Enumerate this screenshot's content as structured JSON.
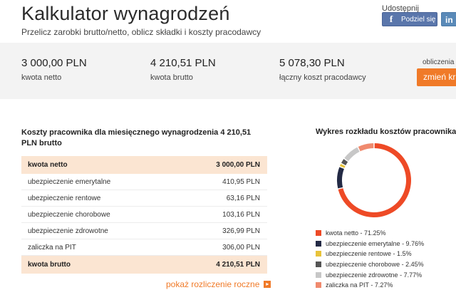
{
  "header": {
    "title": "Kalkulator wynagrodzeń",
    "subtitle": "Przelicz zarobki brutto/netto, oblicz składki i koszty pracodawcy"
  },
  "share": {
    "label": "Udostępnij",
    "facebook_label": "Podziel się",
    "facebook_icon": "f",
    "linkedin_label": "in"
  },
  "summary": {
    "netto_value": "3 000,00 PLN",
    "netto_label": "kwota netto",
    "brutto_value": "4 210,51 PLN",
    "brutto_label": "kwota brutto",
    "koszt_value": "5 078,30 PLN",
    "koszt_label": "łączny koszt pracodawcy",
    "obliczenia_label": "obliczenia",
    "change_button": "zmień kr"
  },
  "costs": {
    "title": "Koszty pracownika dla miesięcznego wynagrodzenia 4 210,51 PLN brutto",
    "rows": [
      {
        "label": "kwota netto",
        "value": "3 000,00 PLN",
        "highlight": true
      },
      {
        "label": "ubezpieczenie emerytalne",
        "value": "410,95 PLN",
        "highlight": false
      },
      {
        "label": "ubezpieczenie rentowe",
        "value": "63,16 PLN",
        "highlight": false
      },
      {
        "label": "ubezpieczenie chorobowe",
        "value": "103,16 PLN",
        "highlight": false
      },
      {
        "label": "ubezpieczenie zdrowotne",
        "value": "326,99 PLN",
        "highlight": false
      },
      {
        "label": "zaliczka na PIT",
        "value": "306,00 PLN",
        "highlight": false
      },
      {
        "label": "kwota brutto",
        "value": "4 210,51 PLN",
        "highlight": true
      }
    ],
    "annual_link": "pokaż rozliczenie roczne"
  },
  "chart": {
    "title": "Wykres rozkładu kosztów pracownika"
  },
  "chart_data": {
    "type": "pie",
    "title": "Wykres rozkładu kosztów pracownika",
    "donut": true,
    "slices": [
      {
        "label": "kwota netto - 71.25%",
        "value": 71.25,
        "color": "#ee4a26"
      },
      {
        "label": "ubezpieczenie emerytalne - 9.76%",
        "value": 9.76,
        "color": "#232a45"
      },
      {
        "label": "ubezpieczenie rentowe - 1.5%",
        "value": 1.5,
        "color": "#e8c33a"
      },
      {
        "label": "ubezpieczenie chorobowe - 2.45%",
        "value": 2.45,
        "color": "#555555"
      },
      {
        "label": "ubezpieczenie zdrowotne - 7.77%",
        "value": 7.77,
        "color": "#c7c7c7"
      },
      {
        "label": "zaliczka na PIT - 7.27%",
        "value": 7.27,
        "color": "#f08a6e"
      }
    ]
  }
}
